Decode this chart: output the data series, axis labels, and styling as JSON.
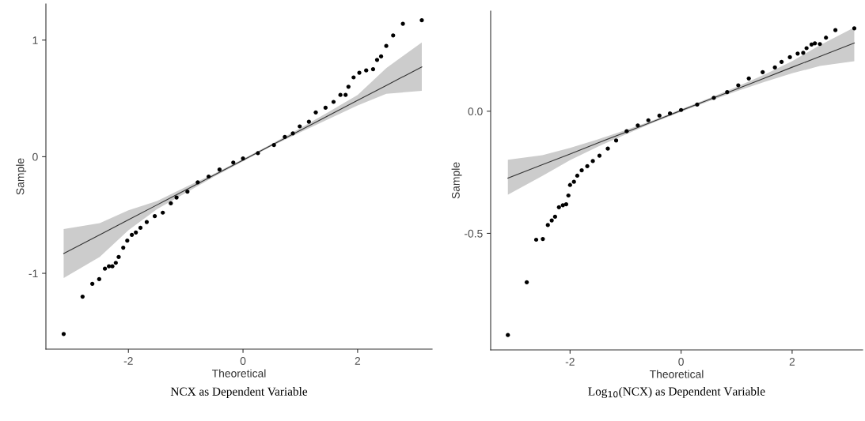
{
  "chart_data": [
    {
      "type": "scatter",
      "xlabel": "Theoretical",
      "ylabel": "Sample",
      "annotations": [
        "NCX as Dependent Variable"
      ],
      "xlim": [
        -3.44,
        3.3
      ],
      "ylim": [
        -1.65,
        1.31
      ],
      "xticks": [
        -2,
        0,
        2
      ],
      "yticks": [
        -1,
        0,
        1
      ],
      "grid": false,
      "legend": false,
      "series": [
        {
          "type": "scatter",
          "color": "#000000",
          "marker": "circle",
          "x": [
            -3.13,
            -2.8,
            -2.63,
            -2.51,
            -2.41,
            -2.34,
            -2.28,
            -2.22,
            -2.17,
            -2.09,
            -2.02,
            -1.94,
            -1.87,
            -1.79,
            -1.68,
            -1.54,
            -1.4,
            -1.26,
            -1.16,
            -0.97,
            -0.79,
            -0.6,
            -0.41,
            -0.17,
            0,
            0.26,
            0.54,
            0.73,
            0.87,
            0.99,
            1.15,
            1.27,
            1.44,
            1.58,
            1.7,
            1.79,
            1.84,
            1.93,
            2.03,
            2.15,
            2.27,
            2.34,
            2.41,
            2.5,
            2.62,
            2.79,
            3.12
          ],
          "values": [
            -1.52,
            -1.2,
            -1.09,
            -1.05,
            -0.96,
            -0.94,
            -0.94,
            -0.91,
            -0.86,
            -0.78,
            -0.72,
            -0.67,
            -0.65,
            -0.61,
            -0.56,
            -0.51,
            -0.48,
            -0.4,
            -0.35,
            -0.3,
            -0.22,
            -0.17,
            -0.11,
            -0.05,
            -0.015,
            0.03,
            0.1,
            0.17,
            0.2,
            0.26,
            0.3,
            0.38,
            0.42,
            0.47,
            0.53,
            0.53,
            0.6,
            0.68,
            0.72,
            0.74,
            0.75,
            0.83,
            0.86,
            0.95,
            1.04,
            1.14,
            1.17
          ]
        },
        {
          "type": "line",
          "color": "#333333",
          "line_style": "solid",
          "x": [
            -3.13,
            -2.5,
            -2,
            -1.5,
            -1,
            -0.5,
            0,
            0.5,
            1,
            1.5,
            2,
            2.5,
            3.12
          ],
          "values": [
            -0.83,
            -0.669,
            -0.541,
            -0.413,
            -0.285,
            -0.157,
            -0.029,
            0.099,
            0.227,
            0.355,
            0.483,
            0.611,
            0.77
          ],
          "lower": [
            -1.04,
            -0.86,
            -0.63,
            -0.45,
            -0.31,
            -0.17,
            -0.04,
            0.09,
            0.21,
            0.325,
            0.44,
            0.54,
            0.565
          ],
          "upper": [
            -0.62,
            -0.57,
            -0.46,
            -0.38,
            -0.26,
            -0.145,
            -0.02,
            0.11,
            0.245,
            0.385,
            0.53,
            0.76,
            0.98
          ]
        }
      ]
    },
    {
      "type": "scatter",
      "xlabel": "Theoretical",
      "ylabel": "Sample",
      "annotations": [
        "Log$_{10}$(NCX) as Dependent Variable"
      ],
      "xlim": [
        -3.43,
        3.27
      ],
      "ylim": [
        -0.977,
        0.41
      ],
      "xticks": [
        -2,
        0,
        2
      ],
      "yticks": [
        -0.5,
        {
          "value": 0,
          "label": "0.0"
        }
      ],
      "grid": false,
      "legend": false,
      "series": [
        {
          "type": "scatter",
          "color": "#000000",
          "marker": "circle",
          "x": [
            -3.12,
            -2.78,
            -2.61,
            -2.49,
            -2.4,
            -2.33,
            -2.27,
            -2.2,
            -2.13,
            -2.07,
            -2.03,
            -2.0,
            -1.93,
            -1.87,
            -1.79,
            -1.69,
            -1.59,
            -1.47,
            -1.32,
            -1.17,
            -0.98,
            -0.78,
            -0.59,
            -0.39,
            -0.2,
            0,
            0.29,
            0.59,
            0.83,
            1.03,
            1.22,
            1.47,
            1.69,
            1.81,
            1.96,
            2.1,
            2.2,
            2.26,
            2.35,
            2.41,
            2.5,
            2.61,
            2.78,
            3.12
          ],
          "values": [
            -0.916,
            -0.7,
            -0.526,
            -0.523,
            -0.466,
            -0.447,
            -0.432,
            -0.393,
            -0.385,
            -0.381,
            -0.345,
            -0.302,
            -0.289,
            -0.264,
            -0.242,
            -0.225,
            -0.204,
            -0.182,
            -0.153,
            -0.12,
            -0.082,
            -0.058,
            -0.037,
            -0.018,
            -0.009,
            0.005,
            0.027,
            0.055,
            0.078,
            0.106,
            0.134,
            0.16,
            0.179,
            0.202,
            0.221,
            0.236,
            0.239,
            0.258,
            0.273,
            0.278,
            0.275,
            0.301,
            0.332,
            0.339
          ]
        },
        {
          "type": "line",
          "color": "#333333",
          "line_style": "solid",
          "x": [
            -3.12,
            -2.5,
            -2,
            -1.5,
            -1,
            -0.5,
            0,
            0.5,
            1,
            1.5,
            2,
            2.5,
            3.12
          ],
          "values": [
            -0.274,
            -0.219,
            -0.175,
            -0.13,
            -0.086,
            -0.042,
            0.003,
            0.047,
            0.091,
            0.135,
            0.18,
            0.224,
            0.279
          ],
          "lower": [
            -0.342,
            -0.265,
            -0.2,
            -0.145,
            -0.095,
            -0.047,
            -0.002,
            0.041,
            0.082,
            0.12,
            0.155,
            0.185,
            0.205
          ],
          "upper": [
            -0.199,
            -0.18,
            -0.15,
            -0.115,
            -0.077,
            -0.037,
            0.008,
            0.053,
            0.1,
            0.15,
            0.205,
            0.27,
            0.343
          ]
        }
      ]
    }
  ]
}
